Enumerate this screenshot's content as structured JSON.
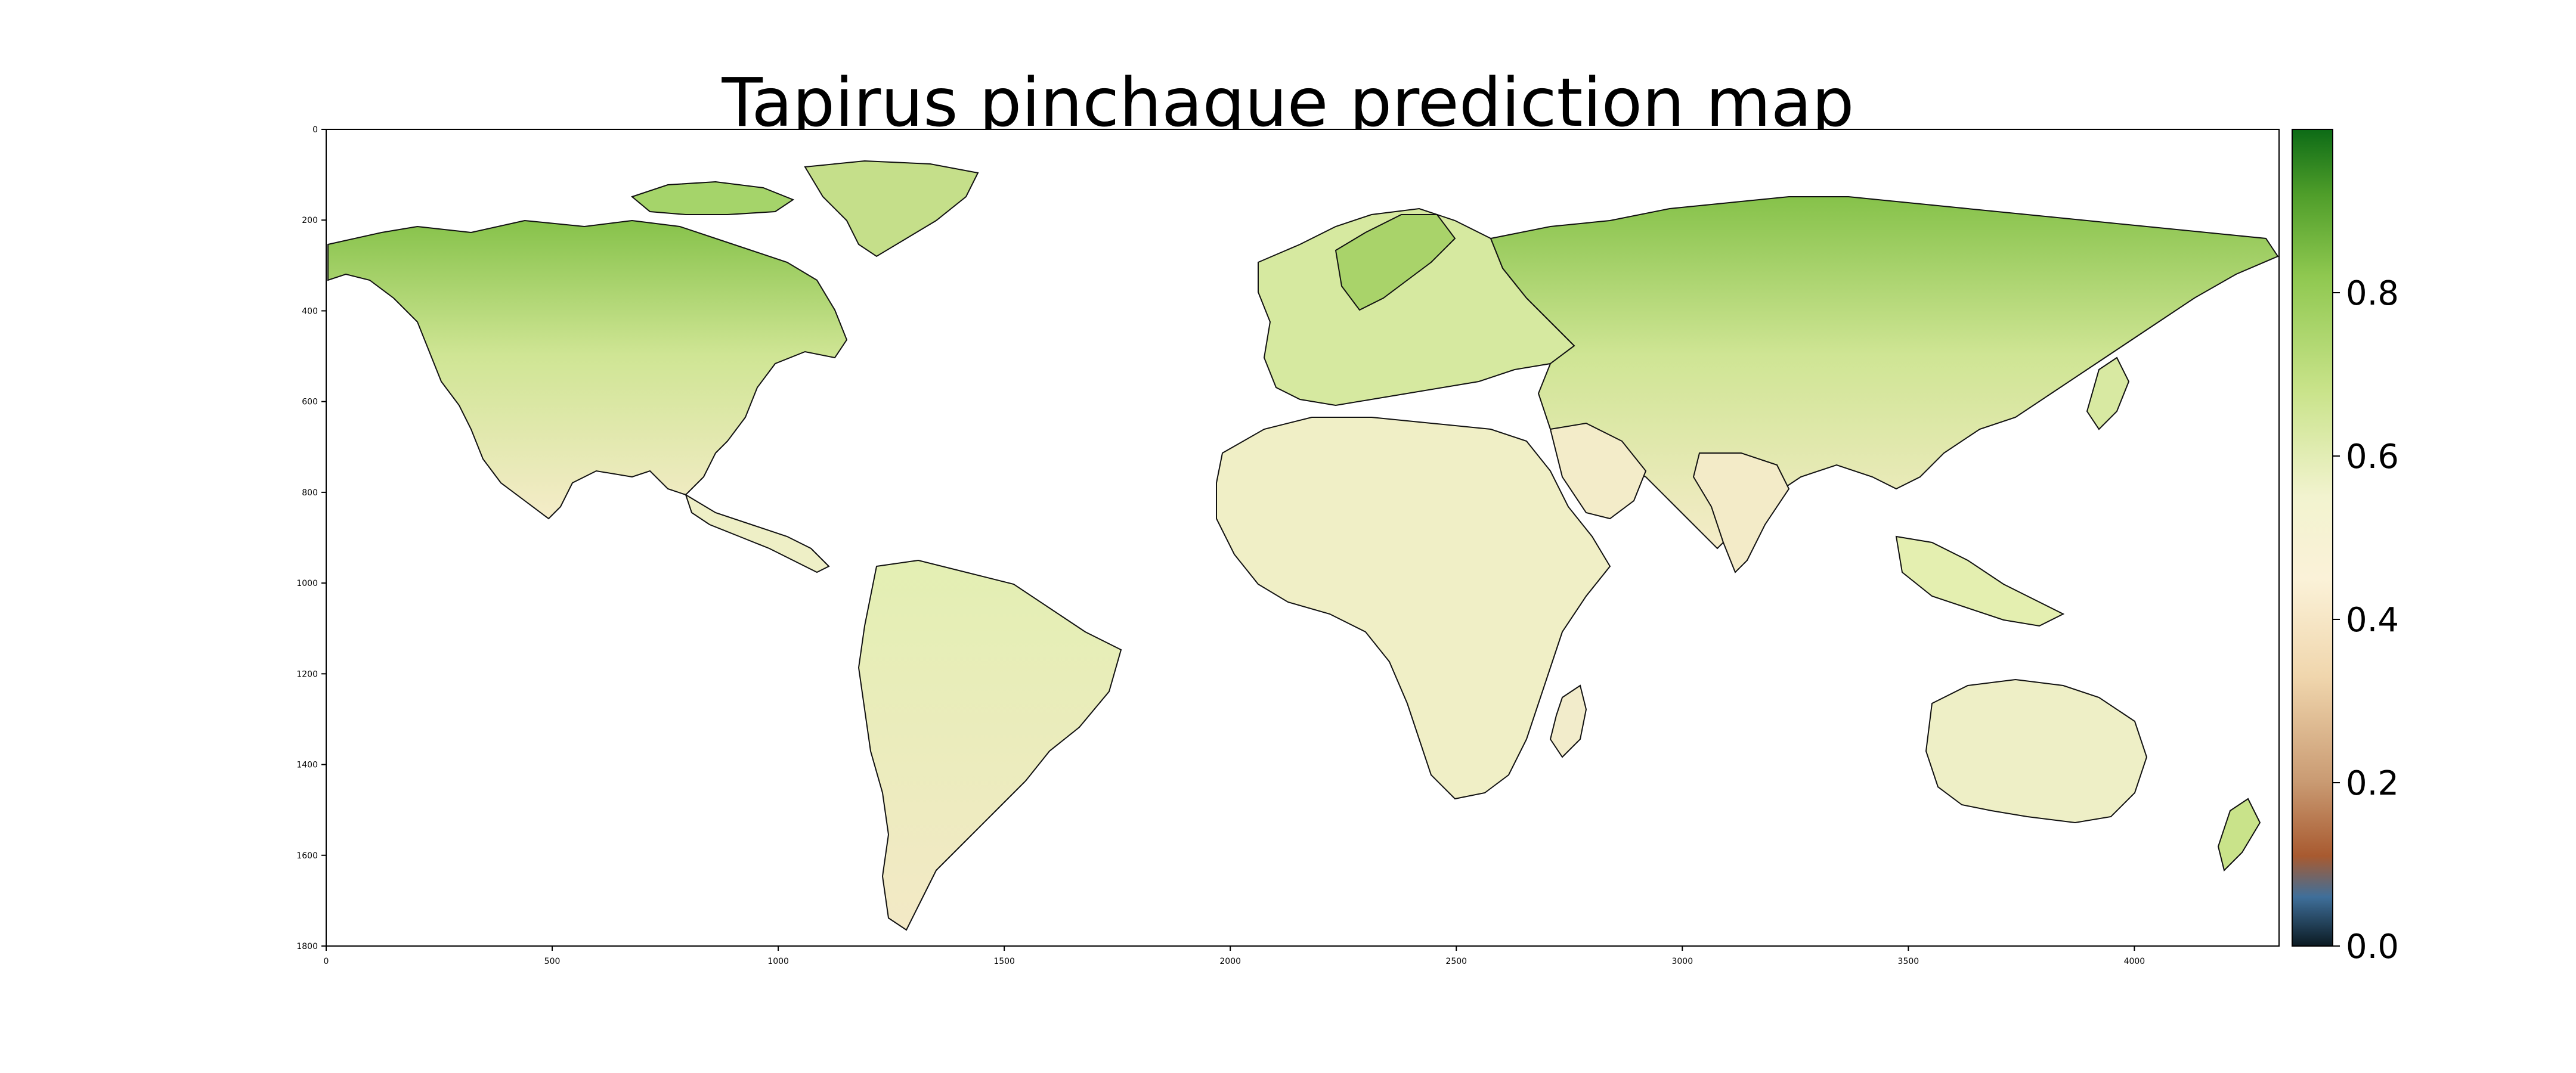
{
  "title": "Tapirus pinchaque prediction map",
  "map": {
    "x_ticks": [
      "0",
      "500",
      "1000",
      "1500",
      "2000",
      "2500",
      "3000",
      "3500",
      "4000"
    ],
    "y_ticks": [
      "0",
      "200",
      "400",
      "600",
      "800",
      "1000",
      "1200",
      "1400",
      "1600",
      "1800"
    ],
    "xlim": [
      0,
      4320
    ],
    "ylim": [
      1800,
      0
    ]
  },
  "colorbar": {
    "ticks": [
      "0.0",
      "0.2",
      "0.4",
      "0.6",
      "0.8"
    ],
    "range": [
      0.0,
      1.0
    ],
    "colormap_stops": [
      {
        "v": 0.0,
        "color": "#0b1a22"
      },
      {
        "v": 0.06,
        "color": "#3f6f9a"
      },
      {
        "v": 0.11,
        "color": "#a85a30"
      },
      {
        "v": 0.2,
        "color": "#c99a72"
      },
      {
        "v": 0.33,
        "color": "#f0d6ad"
      },
      {
        "v": 0.45,
        "color": "#fbf2d8"
      },
      {
        "v": 0.55,
        "color": "#f2f3cf"
      },
      {
        "v": 0.68,
        "color": "#c9e38a"
      },
      {
        "v": 0.82,
        "color": "#8fc850"
      },
      {
        "v": 0.92,
        "color": "#4f9e2a"
      },
      {
        "v": 1.0,
        "color": "#0d6b16"
      }
    ]
  },
  "colors": {
    "land_low": "#f6e8c8",
    "land_mid": "#e6efb6",
    "land_high": "#93c954",
    "coast": "#111111"
  }
}
